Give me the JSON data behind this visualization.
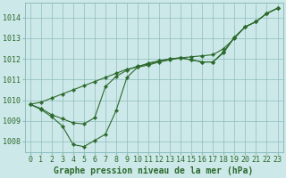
{
  "xlabel": "Graphe pression niveau de la mer (hPa)",
  "x_values": [
    0,
    1,
    2,
    3,
    4,
    5,
    6,
    7,
    8,
    9,
    10,
    11,
    12,
    13,
    14,
    15,
    16,
    17,
    18,
    19,
    20,
    21,
    22,
    23
  ],
  "line1": [
    1009.8,
    1009.9,
    1010.1,
    1010.3,
    1010.5,
    1010.7,
    1010.9,
    1011.1,
    1011.3,
    1011.5,
    1011.6,
    1011.7,
    1011.85,
    1011.95,
    1012.05,
    1012.1,
    1012.15,
    1012.2,
    1012.5,
    1013.0,
    1013.55,
    1013.8,
    1014.2,
    1014.45
  ],
  "line2": [
    1009.8,
    1009.6,
    1009.3,
    1009.1,
    1008.9,
    1008.85,
    1009.15,
    1010.65,
    1011.15,
    1011.45,
    1011.65,
    1011.75,
    1011.9,
    1012.0,
    1012.05,
    1011.95,
    1011.85,
    1011.85,
    1012.3,
    1013.05,
    1013.55,
    1013.8,
    1014.2,
    1014.45
  ],
  "line3": [
    1009.8,
    1009.55,
    1009.2,
    1008.75,
    1007.85,
    1007.75,
    1008.05,
    1008.35,
    1009.5,
    1011.1,
    1011.6,
    1011.8,
    1011.9,
    1012.0,
    1012.05,
    1011.95,
    1011.85,
    1011.85,
    1012.35,
    1013.05,
    1013.55,
    1013.8,
    1014.2,
    1014.45
  ],
  "ylim": [
    1007.5,
    1014.7
  ],
  "xlim": [
    -0.5,
    23.5
  ],
  "yticks": [
    1008,
    1009,
    1010,
    1011,
    1012,
    1013,
    1014
  ],
  "xticks": [
    0,
    1,
    2,
    3,
    4,
    5,
    6,
    7,
    8,
    9,
    10,
    11,
    12,
    13,
    14,
    15,
    16,
    17,
    18,
    19,
    20,
    21,
    22,
    23
  ],
  "line_color": "#2d6a2d",
  "bg_color": "#cce8e8",
  "grid_color": "#8dbdbd",
  "xlabel_fontsize": 7.0,
  "tick_fontsize": 6.0,
  "lw": 0.8,
  "ms": 2.2
}
